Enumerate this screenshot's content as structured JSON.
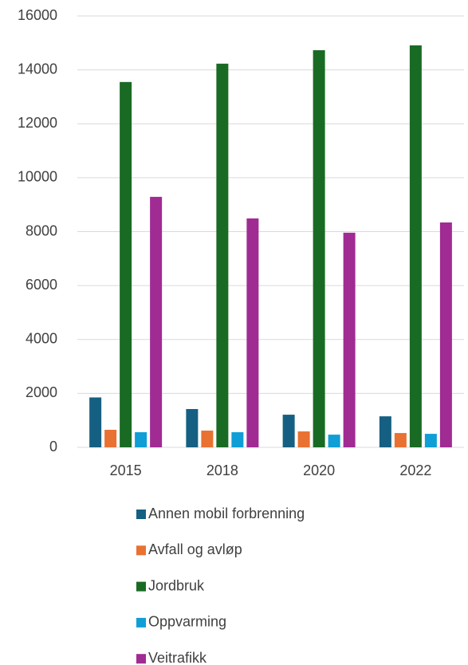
{
  "chart_data": {
    "type": "bar",
    "categories": [
      "2015",
      "2018",
      "2020",
      "2022"
    ],
    "series": [
      {
        "name": "Annen mobil forbrenning",
        "color": "#156082",
        "values": [
          1850,
          1420,
          1210,
          1150
        ]
      },
      {
        "name": "Avfall og avløp",
        "color": "#e97132",
        "values": [
          650,
          620,
          590,
          530
        ]
      },
      {
        "name": "Jordbruk",
        "color": "#196b24",
        "values": [
          13550,
          14230,
          14730,
          14910
        ]
      },
      {
        "name": "Oppvarming",
        "color": "#0f9ed5",
        "values": [
          560,
          560,
          470,
          500
        ]
      },
      {
        "name": "Veitrafikk",
        "color": "#a02b93",
        "values": [
          9290,
          8490,
          7960,
          8340
        ]
      }
    ],
    "ylim": [
      0,
      16000
    ],
    "yticks": [
      0,
      2000,
      4000,
      6000,
      8000,
      10000,
      12000,
      14000,
      16000
    ],
    "grid": true,
    "legend": "bottom"
  }
}
